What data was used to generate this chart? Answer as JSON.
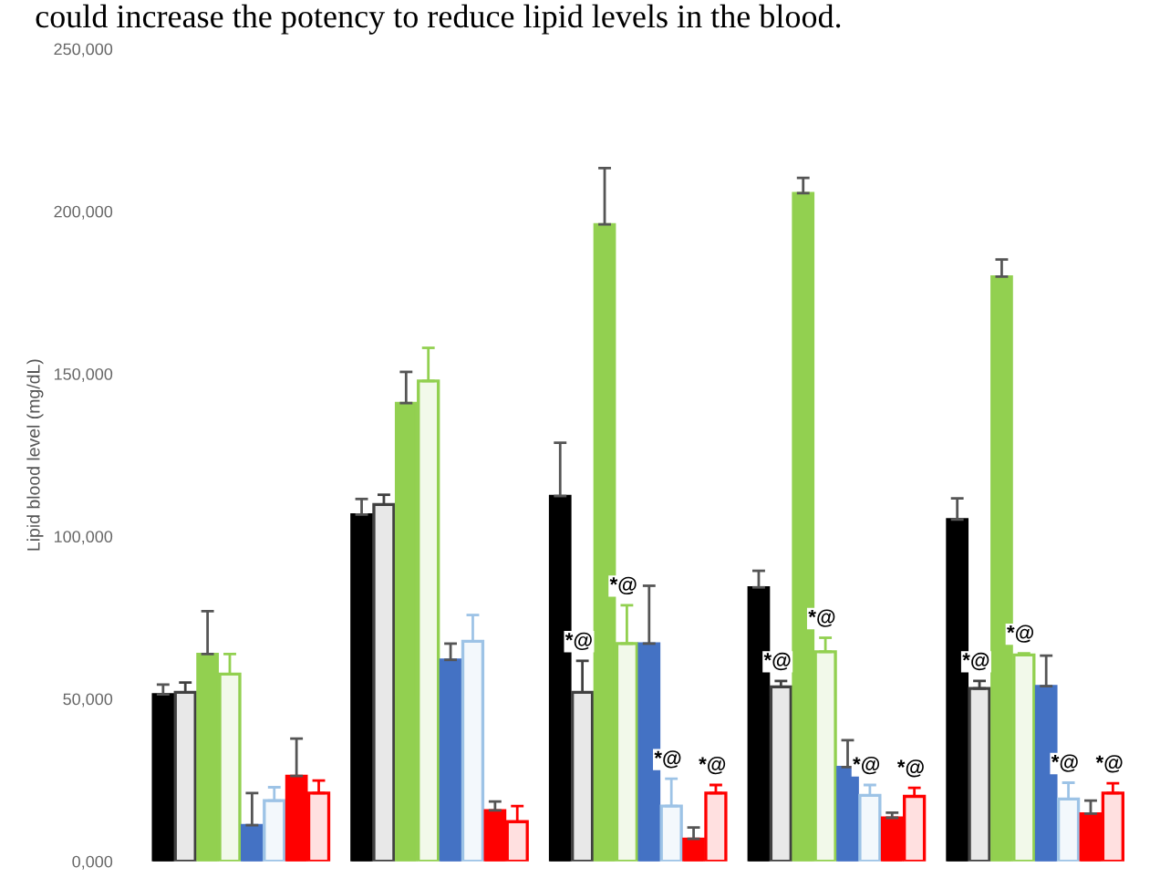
{
  "chart_data": {
    "type": "bar",
    "ylabel": "Lipid blood level (mg/dL)",
    "annotations": [
      "could increase the potency to reduce lipid levels in the blood."
    ],
    "categories": [
      null,
      null,
      null,
      null,
      null
    ],
    "ylim": [
      0,
      250000
    ],
    "yticks": [
      {
        "value": 0,
        "label": "0,000"
      },
      {
        "value": 50000,
        "label": "50,000"
      },
      {
        "value": 100000,
        "label": "100,000"
      },
      {
        "value": 150000,
        "label": "150,000"
      },
      {
        "value": 200000,
        "label": "200,000"
      },
      {
        "value": 250000,
        "label": "250,000"
      }
    ],
    "grid": false,
    "legend": false,
    "series": [
      {
        "color": "#000000",
        "values": [
          51400,
          106700,
          112400,
          84300,
          105200
        ],
        "errors": [
          [
            51400,
            54400
          ],
          [
            106700,
            111500
          ],
          [
            112400,
            128800
          ],
          [
            84300,
            89400
          ],
          [
            105200,
            111700
          ]
        ]
      },
      {
        "color": "#404040",
        "line_style": "solid",
        "values": [
          52000,
          109800,
          52000,
          53700,
          53200
        ],
        "errors": [
          [
            52000,
            55000
          ],
          [
            109800,
            112800
          ],
          [
            52000,
            61700
          ],
          [
            53700,
            55500
          ],
          [
            53200,
            55500
          ]
        ],
        "value_labels": [
          null,
          null,
          "*@",
          "*@",
          "*@"
        ]
      },
      {
        "color": "#92d050",
        "values": [
          63800,
          141000,
          196000,
          205600,
          179900
        ],
        "errors": [
          [
            63800,
            77000
          ],
          [
            141000,
            150600
          ],
          [
            196000,
            213300
          ],
          [
            205600,
            210300
          ],
          [
            179900,
            185200
          ]
        ]
      },
      {
        "color": "#92d050",
        "line_style": "solid",
        "values": [
          57600,
          147800,
          67000,
          64500,
          63500
        ],
        "errors": [
          [
            57600,
            63800
          ],
          [
            147800,
            158000
          ],
          [
            67000,
            78800
          ],
          [
            64500,
            68800
          ],
          [
            63500,
            64000
          ]
        ],
        "value_labels": [
          null,
          null,
          "*@",
          "*@",
          "*@"
        ]
      },
      {
        "color": "#4472c4",
        "values": [
          11100,
          62000,
          67000,
          29000,
          53900
        ],
        "errors": [
          [
            11100,
            21000
          ],
          [
            62000,
            67000
          ],
          [
            67000,
            84800
          ],
          [
            29000,
            37300
          ],
          [
            53900,
            63300
          ]
        ]
      },
      {
        "color": "#9dc3e6",
        "line_style": "solid",
        "values": [
          18700,
          67700,
          17000,
          20300,
          19200
        ],
        "errors": [
          [
            18700,
            22800
          ],
          [
            67700,
            75800
          ],
          [
            17000,
            25400
          ],
          [
            20300,
            23500
          ],
          [
            19200,
            24200
          ]
        ],
        "value_labels": [
          null,
          null,
          "*@",
          "*@",
          "*@"
        ]
      },
      {
        "color": "#ff0000",
        "values": [
          26300,
          15700,
          6900,
          13400,
          14700
        ],
        "errors": [
          [
            26300,
            37800
          ],
          [
            15700,
            18400
          ],
          [
            6900,
            10400
          ],
          [
            13400,
            15000
          ],
          [
            14700,
            18700
          ]
        ]
      },
      {
        "color": "#ff0000",
        "line_style": "solid",
        "values": [
          21000,
          12200,
          21000,
          20000,
          21000
        ],
        "errors": [
          [
            21000,
            24900
          ],
          [
            12200,
            17000
          ],
          [
            21000,
            23500
          ],
          [
            20000,
            22600
          ],
          [
            21000,
            24000
          ]
        ],
        "value_labels": [
          null,
          null,
          "*@",
          "*@",
          "*@"
        ]
      }
    ]
  }
}
